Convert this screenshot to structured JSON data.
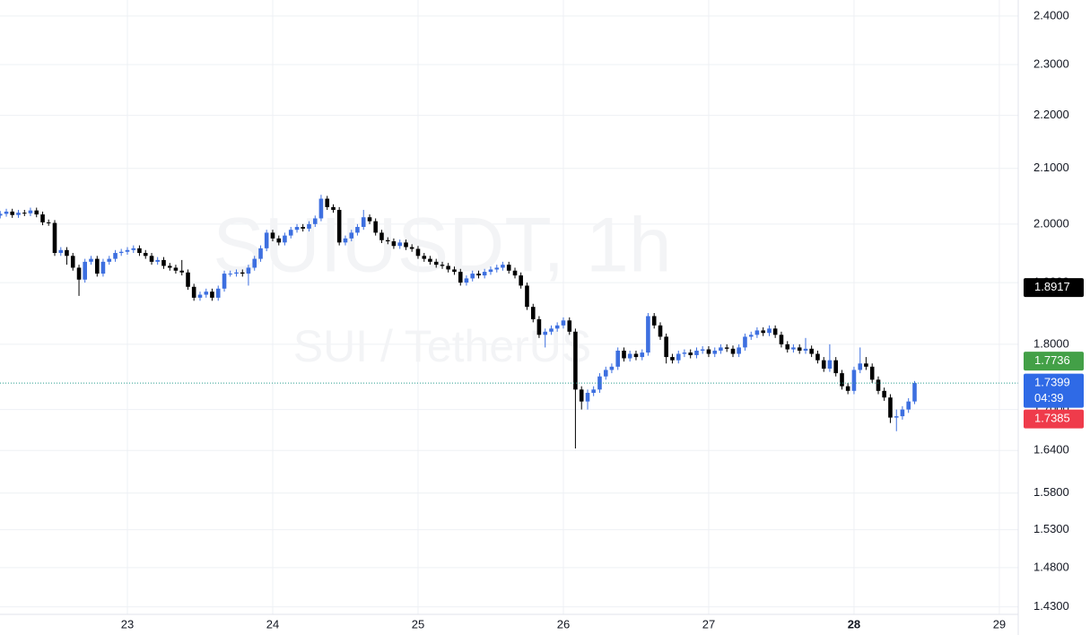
{
  "chart_data": {
    "type": "candlestick",
    "log_scale": true,
    "grid": true,
    "up_color": "#3d6fe0",
    "down_color": "#000000",
    "watermark": [
      "SUIUSDT, 1h",
      "SUI / TetherUS"
    ],
    "xlim": [
      22.1235,
      29.13
    ],
    "xticks": [
      23,
      24,
      25,
      26,
      27,
      28,
      29
    ],
    "highlight_xtick": 28,
    "ylim": [
      1.4206,
      2.434
    ],
    "yticks": [
      {
        "value": 2.4,
        "label": "2.4000"
      },
      {
        "value": 2.3,
        "label": "2.3000"
      },
      {
        "value": 2.2,
        "label": "2.2000"
      },
      {
        "value": 2.1,
        "label": "2.1000"
      },
      {
        "value": 2.0,
        "label": "2.0000"
      },
      {
        "value": 1.9,
        "label": "1.9000"
      },
      {
        "value": 1.8,
        "label": "1.8000"
      },
      {
        "value": 1.7,
        "label": "1.7000"
      },
      {
        "value": 1.64,
        "label": "1.6400"
      },
      {
        "value": 1.58,
        "label": "1.5800"
      },
      {
        "value": 1.53,
        "label": "1.5300"
      },
      {
        "value": 1.48,
        "label": "1.4800"
      },
      {
        "value": 1.43,
        "label": "1.4300"
      }
    ],
    "price_labels": [
      {
        "value": 1.8917,
        "label": "1.8917",
        "color": "#000000"
      },
      {
        "value": 1.7736,
        "label": "1.7736",
        "color": "#43a047"
      },
      {
        "value": 1.7399,
        "label": "1.7399",
        "countdown": "04:39",
        "color": "#2f6ae6"
      },
      {
        "value": 1.7385,
        "label": "1.7385",
        "color": "#ef3b4b"
      }
    ],
    "x": [
      22.125,
      22.167,
      22.208,
      22.25,
      22.292,
      22.333,
      22.375,
      22.417,
      22.458,
      22.5,
      22.542,
      22.583,
      22.625,
      22.667,
      22.708,
      22.75,
      22.792,
      22.833,
      22.875,
      22.917,
      22.958,
      23.0,
      23.042,
      23.083,
      23.125,
      23.167,
      23.208,
      23.25,
      23.292,
      23.333,
      23.375,
      23.417,
      23.458,
      23.5,
      23.542,
      23.583,
      23.625,
      23.667,
      23.708,
      23.75,
      23.792,
      23.833,
      23.875,
      23.917,
      23.958,
      24.0,
      24.042,
      24.083,
      24.125,
      24.167,
      24.208,
      24.25,
      24.292,
      24.333,
      24.375,
      24.417,
      24.458,
      24.5,
      24.542,
      24.583,
      24.625,
      24.667,
      24.708,
      24.75,
      24.792,
      24.833,
      24.875,
      24.917,
      24.958,
      25.0,
      25.042,
      25.083,
      25.125,
      25.167,
      25.208,
      25.25,
      25.292,
      25.333,
      25.375,
      25.417,
      25.458,
      25.5,
      25.542,
      25.583,
      25.625,
      25.667,
      25.708,
      25.75,
      25.792,
      25.833,
      25.875,
      25.917,
      25.958,
      26.0,
      26.042,
      26.083,
      26.125,
      26.167,
      26.208,
      26.25,
      26.292,
      26.333,
      26.375,
      26.417,
      26.458,
      26.5,
      26.542,
      26.583,
      26.625,
      26.667,
      26.708,
      26.75,
      26.792,
      26.833,
      26.875,
      26.917,
      26.958,
      27.0,
      27.042,
      27.083,
      27.125,
      27.167,
      27.208,
      27.25,
      27.292,
      27.333,
      27.375,
      27.417,
      27.458,
      27.5,
      27.542,
      27.583,
      27.625,
      27.667,
      27.708,
      27.75,
      27.792,
      27.833,
      27.875,
      27.917,
      27.958,
      28.0,
      28.042,
      28.083,
      28.125,
      28.167,
      28.208,
      28.25,
      28.292,
      28.333,
      28.375,
      28.417
    ],
    "open": [
      2.015,
      2.018,
      2.022,
      2.016,
      2.02,
      2.019,
      2.024,
      2.017,
      2.003,
      2.002,
      1.95,
      1.955,
      1.945,
      1.925,
      1.905,
      1.935,
      1.94,
      1.915,
      1.935,
      1.94,
      1.95,
      1.952,
      1.955,
      1.958,
      1.95,
      1.945,
      1.935,
      1.938,
      1.928,
      1.925,
      1.92,
      1.917,
      1.893,
      1.875,
      1.88,
      1.885,
      1.875,
      1.89,
      1.915,
      1.915,
      1.917,
      1.915,
      1.925,
      1.94,
      1.958,
      1.985,
      1.975,
      1.968,
      1.98,
      1.99,
      1.995,
      1.992,
      2.0,
      2.01,
      2.045,
      2.03,
      2.025,
      1.968,
      1.975,
      1.985,
      1.995,
      2.012,
      2.005,
      1.985,
      1.972,
      1.97,
      1.962,
      1.968,
      1.96,
      1.957,
      1.945,
      1.94,
      1.935,
      1.93,
      1.928,
      1.922,
      1.918,
      1.9,
      1.907,
      1.915,
      1.912,
      1.918,
      1.922,
      1.925,
      1.93,
      1.92,
      1.912,
      1.895,
      1.86,
      1.84,
      1.815,
      1.82,
      1.825,
      1.83,
      1.838,
      1.82,
      1.73,
      1.712,
      1.725,
      1.73,
      1.75,
      1.76,
      1.765,
      1.79,
      1.778,
      1.785,
      1.78,
      1.787,
      1.845,
      1.83,
      1.812,
      1.78,
      1.775,
      1.785,
      1.787,
      1.783,
      1.79,
      1.792,
      1.785,
      1.79,
      1.795,
      1.793,
      1.785,
      1.795,
      1.812,
      1.815,
      1.822,
      1.818,
      1.825,
      1.815,
      1.8,
      1.792,
      1.795,
      1.79,
      1.793,
      1.785,
      1.775,
      1.762,
      1.775,
      1.755,
      1.735,
      1.728,
      1.76,
      1.77,
      1.765,
      1.745,
      1.728,
      1.718,
      1.688,
      1.69,
      1.7,
      1.712
    ],
    "high": [
      2.023,
      2.027,
      2.027,
      2.025,
      2.025,
      2.029,
      2.029,
      2.022,
      2.008,
      2.007,
      1.96,
      1.96,
      1.95,
      1.93,
      1.94,
      1.945,
      1.945,
      1.94,
      1.945,
      1.955,
      1.957,
      1.96,
      1.963,
      1.963,
      1.955,
      1.95,
      1.943,
      1.943,
      1.933,
      1.93,
      1.938,
      1.922,
      1.898,
      1.885,
      1.89,
      1.89,
      1.895,
      1.92,
      1.92,
      1.922,
      1.922,
      1.93,
      1.945,
      1.963,
      1.99,
      1.99,
      1.98,
      1.985,
      1.995,
      2.0,
      2.0,
      2.005,
      2.015,
      2.052,
      2.05,
      2.035,
      2.03,
      1.98,
      1.99,
      2.0,
      2.025,
      2.017,
      2.01,
      1.99,
      1.977,
      1.975,
      1.973,
      1.973,
      1.965,
      1.962,
      1.95,
      1.945,
      1.94,
      1.935,
      1.933,
      1.927,
      1.923,
      1.912,
      1.92,
      1.92,
      1.923,
      1.927,
      1.93,
      1.935,
      1.935,
      1.925,
      1.917,
      1.9,
      1.865,
      1.845,
      1.825,
      1.83,
      1.835,
      1.843,
      1.843,
      1.825,
      1.735,
      1.73,
      1.735,
      1.755,
      1.765,
      1.77,
      1.795,
      1.795,
      1.79,
      1.79,
      1.792,
      1.85,
      1.85,
      1.835,
      1.817,
      1.785,
      1.79,
      1.792,
      1.792,
      1.795,
      1.797,
      1.797,
      1.795,
      1.8,
      1.8,
      1.798,
      1.8,
      1.817,
      1.82,
      1.827,
      1.827,
      1.83,
      1.83,
      1.82,
      1.805,
      1.8,
      1.8,
      1.81,
      1.798,
      1.79,
      1.78,
      1.8,
      1.78,
      1.76,
      1.74,
      1.765,
      1.795,
      1.78,
      1.77,
      1.75,
      1.733,
      1.723,
      1.7,
      1.705,
      1.717,
      1.743
    ],
    "low": [
      2.01,
      2.013,
      2.011,
      2.011,
      2.014,
      2.014,
      2.012,
      1.998,
      1.997,
      1.945,
      1.945,
      1.93,
      1.92,
      1.878,
      1.9,
      1.93,
      1.91,
      1.91,
      1.93,
      1.935,
      1.945,
      1.947,
      1.95,
      1.945,
      1.94,
      1.93,
      1.93,
      1.923,
      1.92,
      1.915,
      1.912,
      1.888,
      1.87,
      1.87,
      1.875,
      1.87,
      1.87,
      1.885,
      1.91,
      1.91,
      1.91,
      1.895,
      1.92,
      1.935,
      1.953,
      1.97,
      1.963,
      1.963,
      1.975,
      1.985,
      1.987,
      1.987,
      1.995,
      2.005,
      2.025,
      2.02,
      1.963,
      1.963,
      1.97,
      1.98,
      1.99,
      2.0,
      1.98,
      1.967,
      1.965,
      1.957,
      1.957,
      1.955,
      1.952,
      1.94,
      1.935,
      1.93,
      1.925,
      1.923,
      1.917,
      1.913,
      1.895,
      1.895,
      1.902,
      1.907,
      1.907,
      1.913,
      1.917,
      1.92,
      1.915,
      1.907,
      1.89,
      1.855,
      1.835,
      1.81,
      1.795,
      1.815,
      1.82,
      1.825,
      1.815,
      1.643,
      1.7,
      1.7,
      1.72,
      1.725,
      1.745,
      1.755,
      1.76,
      1.773,
      1.773,
      1.775,
      1.775,
      1.782,
      1.825,
      1.807,
      1.77,
      1.77,
      1.77,
      1.78,
      1.778,
      1.778,
      1.785,
      1.78,
      1.78,
      1.785,
      1.788,
      1.78,
      1.78,
      1.79,
      1.807,
      1.81,
      1.813,
      1.813,
      1.81,
      1.795,
      1.787,
      1.787,
      1.785,
      1.785,
      1.78,
      1.77,
      1.757,
      1.757,
      1.75,
      1.73,
      1.723,
      1.723,
      1.755,
      1.76,
      1.74,
      1.723,
      1.713,
      1.68,
      1.668,
      1.685,
      1.695,
      1.708
    ],
    "close": [
      2.018,
      2.022,
      2.016,
      2.02,
      2.019,
      2.024,
      2.017,
      2.003,
      2.002,
      1.95,
      1.955,
      1.945,
      1.925,
      1.905,
      1.935,
      1.94,
      1.915,
      1.935,
      1.94,
      1.95,
      1.952,
      1.955,
      1.958,
      1.95,
      1.945,
      1.935,
      1.938,
      1.928,
      1.925,
      1.92,
      1.917,
      1.893,
      1.875,
      1.88,
      1.885,
      1.875,
      1.89,
      1.915,
      1.915,
      1.917,
      1.915,
      1.925,
      1.94,
      1.958,
      1.985,
      1.975,
      1.968,
      1.98,
      1.99,
      1.995,
      1.992,
      2.0,
      2.01,
      2.045,
      2.03,
      2.025,
      1.968,
      1.975,
      1.985,
      1.995,
      2.012,
      2.005,
      1.985,
      1.972,
      1.97,
      1.962,
      1.968,
      1.96,
      1.957,
      1.945,
      1.94,
      1.935,
      1.93,
      1.928,
      1.922,
      1.918,
      1.9,
      1.907,
      1.915,
      1.912,
      1.918,
      1.922,
      1.925,
      1.93,
      1.92,
      1.912,
      1.895,
      1.86,
      1.84,
      1.815,
      1.82,
      1.825,
      1.83,
      1.838,
      1.82,
      1.73,
      1.712,
      1.725,
      1.73,
      1.75,
      1.76,
      1.765,
      1.79,
      1.778,
      1.785,
      1.78,
      1.787,
      1.845,
      1.83,
      1.812,
      1.78,
      1.775,
      1.785,
      1.787,
      1.783,
      1.79,
      1.792,
      1.785,
      1.79,
      1.795,
      1.793,
      1.785,
      1.795,
      1.812,
      1.815,
      1.822,
      1.818,
      1.825,
      1.815,
      1.8,
      1.792,
      1.795,
      1.79,
      1.793,
      1.785,
      1.775,
      1.762,
      1.775,
      1.755,
      1.735,
      1.728,
      1.76,
      1.77,
      1.765,
      1.745,
      1.728,
      1.718,
      1.688,
      1.69,
      1.7,
      1.712,
      1.7399
    ]
  }
}
